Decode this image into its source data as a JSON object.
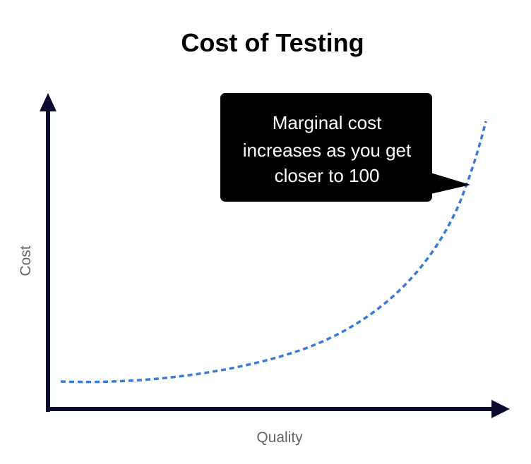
{
  "title": "Cost of Testing",
  "y_axis_label": "Cost",
  "x_axis_label": "Quality",
  "callout": {
    "lines": [
      "Marginal cost",
      "increases as you get",
      "closer to 100"
    ]
  },
  "colors": {
    "axis": "#0b0b30",
    "curve": "#3a7bd5",
    "callout_bg": "#000000",
    "callout_text": "#ffffff",
    "label": "#666666"
  }
}
